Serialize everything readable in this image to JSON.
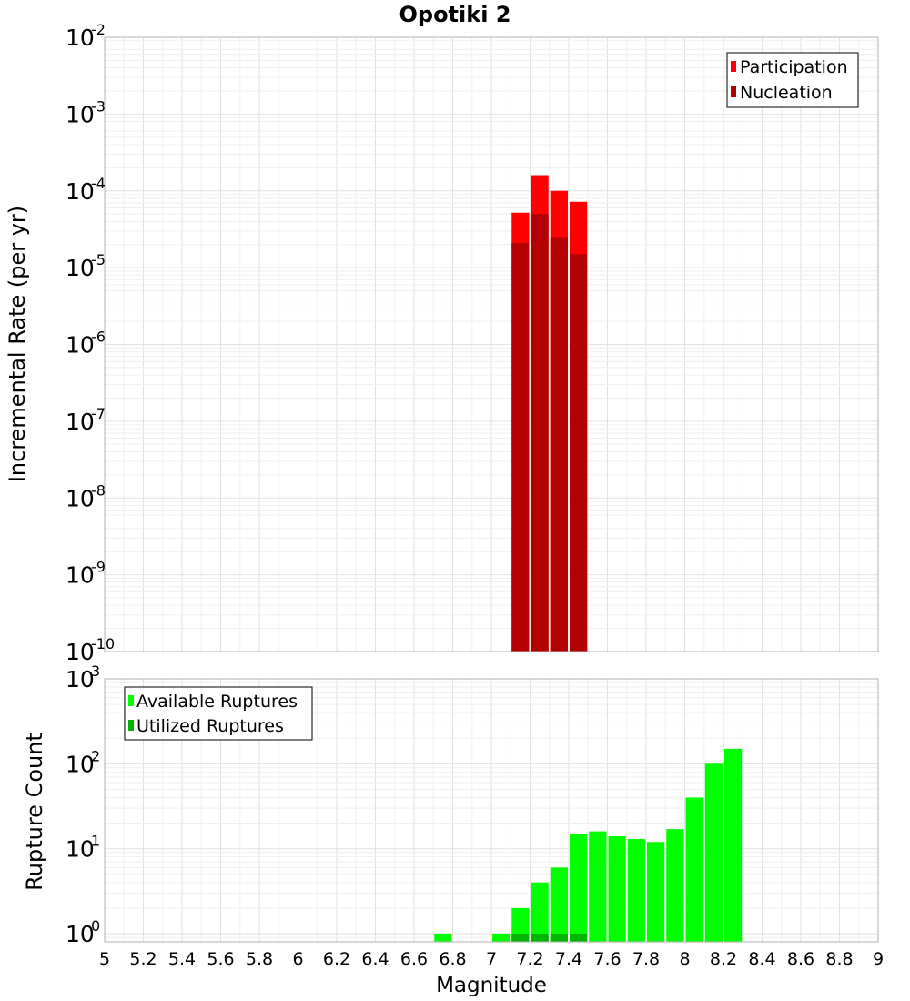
{
  "chart_data": [
    {
      "type": "bar",
      "title": "Opotiki 2",
      "xlabel": "",
      "ylabel": "Incremental Rate (per yr)",
      "yscale": "log",
      "ylim": [
        1e-10,
        0.01
      ],
      "xlim": [
        5,
        9
      ],
      "bin_width": 0.1,
      "grid": true,
      "legend_position": "top-right",
      "ytick_labels": [
        {
          "base": "10",
          "exp": "-10"
        },
        {
          "base": "10",
          "exp": "-9"
        },
        {
          "base": "10",
          "exp": "-8"
        },
        {
          "base": "10",
          "exp": "-7"
        },
        {
          "base": "10",
          "exp": "-6"
        },
        {
          "base": "10",
          "exp": "-5"
        },
        {
          "base": "10",
          "exp": "-4"
        },
        {
          "base": "10",
          "exp": "-3"
        },
        {
          "base": "10",
          "exp": "-2"
        }
      ],
      "series": [
        {
          "name": "Participation",
          "color": "#ff0000",
          "x": [
            7.15,
            7.25,
            7.35,
            7.45
          ],
          "values": [
            5.2e-05,
            0.00016,
            0.0001,
            7.2e-05
          ]
        },
        {
          "name": "Nucleation",
          "color": "#b30000",
          "x": [
            7.15,
            7.25,
            7.35,
            7.45
          ],
          "values": [
            2.1e-05,
            5e-05,
            2.5e-05,
            1.5e-05
          ]
        }
      ]
    },
    {
      "type": "bar",
      "title": "",
      "xlabel": "Magnitude",
      "ylabel": "Rupture Count",
      "yscale": "log",
      "ylim": [
        0.8,
        1000
      ],
      "xlim": [
        5,
        9
      ],
      "bin_width": 0.1,
      "grid": true,
      "legend_position": "top-left",
      "ytick_labels": [
        {
          "base": "10",
          "exp": "0"
        },
        {
          "base": "10",
          "exp": "1"
        },
        {
          "base": "10",
          "exp": "2"
        },
        {
          "base": "10",
          "exp": "3"
        }
      ],
      "xtick_labels": [
        "5",
        "5.2",
        "5.4",
        "5.6",
        "5.8",
        "6",
        "6.2",
        "6.4",
        "6.6",
        "6.8",
        "7",
        "7.2",
        "7.4",
        "7.6",
        "7.8",
        "8",
        "8.2",
        "8.4",
        "8.6",
        "8.8",
        "9"
      ],
      "series": [
        {
          "name": "Available Ruptures",
          "color": "#00ff00",
          "x": [
            6.75,
            7.05,
            7.15,
            7.25,
            7.35,
            7.45,
            7.55,
            7.65,
            7.75,
            7.85,
            7.95,
            8.05,
            8.15,
            8.25
          ],
          "values": [
            1,
            1,
            2,
            4,
            6,
            15,
            16,
            14,
            13,
            12,
            17,
            40,
            100,
            150
          ]
        },
        {
          "name": "Utilized Ruptures",
          "color": "#00b300",
          "x": [
            7.15,
            7.25,
            7.35,
            7.45
          ],
          "values": [
            1,
            1,
            1,
            1
          ]
        }
      ]
    }
  ]
}
